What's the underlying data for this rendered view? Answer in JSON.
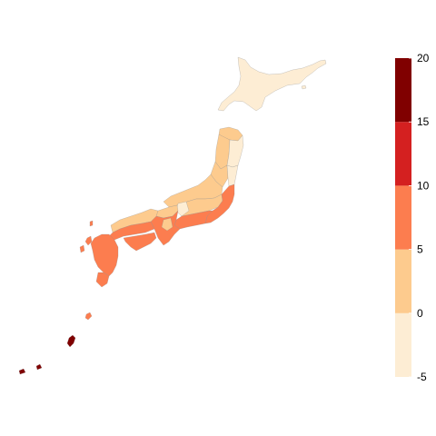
{
  "map": {
    "legend": {
      "bins": [
        {
          "min": -5,
          "max": 0,
          "color": "#fdedd4"
        },
        {
          "min": 0,
          "max": 5,
          "color": "#fdcb8e"
        },
        {
          "min": 5,
          "max": 10,
          "color": "#fc7d4f"
        },
        {
          "min": 10,
          "max": 15,
          "color": "#d42020"
        },
        {
          "min": 15,
          "max": 20,
          "color": "#800000"
        }
      ],
      "tick_labels": [
        "20",
        "15",
        "10",
        "5",
        "0",
        "-5"
      ]
    },
    "region_values": {
      "hokkaido": -2.5,
      "tohoku_aomori": 1.5,
      "tohoku_west": 1.5,
      "tohoku_east": -2.5,
      "tohoku_south_west": 1.5,
      "tohoku_south_east": -2.5,
      "chubu_north": 2.5,
      "chubu_central": 2.5,
      "chubu_light": -1.5,
      "kanto": 7.5,
      "chubu_tokai": 7.5,
      "kinki_north": 2.5,
      "kinki": 7.5,
      "kinki_light": 2.5,
      "chugoku_north": 2.5,
      "chugoku_south": 7.5,
      "shikoku": 7.5,
      "kyushu": 7.5,
      "kyushu_south": 7.5,
      "nansei_north": 7.5,
      "okinawa": 17.5,
      "sakishima": 17.5
    }
  }
}
